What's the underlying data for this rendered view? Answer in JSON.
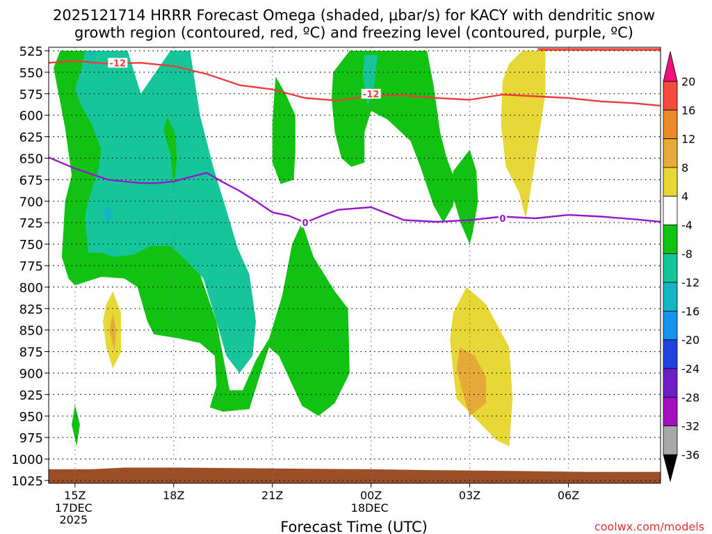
{
  "chart_data": {
    "type": "heatmap",
    "title": {
      "line1": "2025121714 HRRR Forecast Omega (shaded, μbar/s) for KACY with dendritic snow",
      "line2": "growth region (contoured, red, ºC) and freezing level (contoured, purple, ºC)"
    },
    "xlabel": "Forecast Time (UTC)",
    "ylabel": "",
    "credit": "coolwx.com/models",
    "x_range_hours": [
      14.2,
      32.8
    ],
    "y_range_hpa": [
      525,
      1025
    ],
    "y_ticks": [
      "525",
      "550",
      "575",
      "600",
      "625",
      "650",
      "675",
      "700",
      "725",
      "750",
      "775",
      "800",
      "825",
      "850",
      "875",
      "900",
      "925",
      "950",
      "975",
      "1000",
      "1025"
    ],
    "x_ticks": [
      {
        "hour": 15,
        "label": "15Z",
        "sub": [
          "17DEC",
          "2025"
        ]
      },
      {
        "hour": 18,
        "label": "18Z",
        "sub": []
      },
      {
        "hour": 21,
        "label": "21Z",
        "sub": []
      },
      {
        "hour": 24,
        "label": "00Z",
        "sub": [
          "18DEC"
        ]
      },
      {
        "hour": 27,
        "label": "03Z",
        "sub": []
      },
      {
        "hour": 30,
        "label": "06Z",
        "sub": []
      }
    ],
    "grid": true,
    "colorbar": {
      "labels": [
        "20",
        "16",
        "12",
        "8",
        "4",
        "-4",
        "-8",
        "-12",
        "-16",
        "-20",
        "-24",
        "-28",
        "-32",
        "-36"
      ],
      "colors": {
        "gt20": "#f00f7d",
        "16_20": "#f54a3e",
        "12_16": "#ec8a27",
        "8_12": "#e5aa37",
        "4_8": "#e7d838",
        "m4_4": "#ffffff",
        "m8_m4": "#12c212",
        "m12_m8": "#17c59a",
        "m16_m12": "#14b5c4",
        "m20_m16": "#1591ee",
        "m24_m20": "#1d44dc",
        "m28_m24": "#6c1fc7",
        "m32_m28": "#a30fbf",
        "m36_m32": "#a8a8a8",
        "lt_m36": "#000000"
      }
    },
    "omega_regions": [
      {
        "band": "m8_m4",
        "points": [
          [
            14.55,
            525
          ],
          [
            15.3,
            525
          ],
          [
            15.4,
            555
          ],
          [
            16.0,
            580
          ],
          [
            16.5,
            620
          ],
          [
            17.1,
            660
          ],
          [
            17.5,
            695
          ],
          [
            17.6,
            730
          ],
          [
            17.9,
            752
          ],
          [
            18.3,
            765
          ],
          [
            18.8,
            785
          ],
          [
            19.3,
            840
          ],
          [
            19.7,
            920
          ],
          [
            20.1,
            920
          ],
          [
            20.5,
            885
          ],
          [
            20.9,
            860
          ],
          [
            21.3,
            810
          ],
          [
            21.6,
            750
          ],
          [
            21.9,
            725
          ],
          [
            22.25,
            765
          ],
          [
            22.9,
            805
          ],
          [
            23.3,
            825
          ],
          [
            23.35,
            900
          ],
          [
            22.9,
            935
          ],
          [
            22.4,
            950
          ],
          [
            21.9,
            938
          ],
          [
            21.5,
            905
          ],
          [
            21.2,
            880
          ],
          [
            20.9,
            870
          ],
          [
            20.6,
            905
          ],
          [
            20.3,
            942
          ],
          [
            19.5,
            945
          ],
          [
            19.1,
            940
          ],
          [
            19.3,
            915
          ],
          [
            19.25,
            880
          ],
          [
            18.8,
            865
          ],
          [
            18.2,
            860
          ],
          [
            17.4,
            855
          ],
          [
            17.2,
            840
          ],
          [
            16.9,
            800
          ],
          [
            16.5,
            790
          ],
          [
            15.8,
            788
          ],
          [
            15.0,
            798
          ],
          [
            14.8,
            790
          ],
          [
            14.6,
            765
          ],
          [
            14.7,
            700
          ],
          [
            14.9,
            670
          ],
          [
            14.7,
            615
          ],
          [
            14.5,
            575
          ],
          [
            14.35,
            545
          ]
        ]
      },
      {
        "band": "m12_m8",
        "points": [
          [
            15.3,
            525
          ],
          [
            16.6,
            525
          ],
          [
            17.0,
            575
          ],
          [
            17.9,
            525
          ],
          [
            18.5,
            525
          ],
          [
            18.8,
            600
          ],
          [
            19.2,
            660
          ],
          [
            19.6,
            710
          ],
          [
            19.95,
            755
          ],
          [
            20.3,
            785
          ],
          [
            20.5,
            840
          ],
          [
            20.4,
            880
          ],
          [
            20.0,
            900
          ],
          [
            19.6,
            880
          ],
          [
            19.3,
            840
          ],
          [
            18.9,
            790
          ],
          [
            18.4,
            770
          ],
          [
            17.9,
            752
          ],
          [
            17.3,
            752
          ],
          [
            16.8,
            762
          ],
          [
            16.2,
            765
          ],
          [
            15.8,
            760
          ],
          [
            15.4,
            760
          ],
          [
            15.3,
            720
          ],
          [
            15.4,
            700
          ],
          [
            15.7,
            665
          ],
          [
            15.8,
            640
          ],
          [
            15.5,
            610
          ],
          [
            15.2,
            590
          ],
          [
            15.0,
            570
          ],
          [
            15.2,
            545
          ]
        ]
      },
      {
        "band": "m8_m4",
        "points": [
          [
            17.8,
            602
          ],
          [
            18.05,
            622
          ],
          [
            18.1,
            650
          ],
          [
            18.0,
            685
          ],
          [
            17.9,
            645
          ],
          [
            17.7,
            618
          ]
        ]
      },
      {
        "band": "m16_m12",
        "points": [
          [
            15.95,
            705
          ],
          [
            16.2,
            715
          ],
          [
            16.0,
            725
          ],
          [
            15.85,
            715
          ]
        ]
      },
      {
        "band": "m16_m12",
        "points": [
          [
            15.5,
            525
          ],
          [
            15.6,
            528
          ],
          [
            15.5,
            532
          ],
          [
            15.4,
            528
          ]
        ]
      },
      {
        "band": "m8_m4",
        "points": [
          [
            21.1,
            555
          ],
          [
            21.4,
            575
          ],
          [
            21.7,
            600
          ],
          [
            21.7,
            640
          ],
          [
            21.65,
            675
          ],
          [
            21.25,
            680
          ],
          [
            21.0,
            655
          ],
          [
            21.0,
            610
          ],
          [
            21.05,
            580
          ]
        ]
      },
      {
        "band": "m8_m4",
        "points": [
          [
            23.35,
            525
          ],
          [
            25.7,
            525
          ],
          [
            25.9,
            565
          ],
          [
            26.1,
            620
          ],
          [
            26.3,
            650
          ],
          [
            26.6,
            680
          ],
          [
            26.5,
            705
          ],
          [
            26.2,
            725
          ],
          [
            25.9,
            705
          ],
          [
            25.5,
            660
          ],
          [
            25.2,
            630
          ],
          [
            24.5,
            605
          ],
          [
            24.0,
            595
          ],
          [
            23.8,
            620
          ],
          [
            23.8,
            655
          ],
          [
            23.4,
            660
          ],
          [
            23.1,
            650
          ],
          [
            22.9,
            620
          ],
          [
            22.8,
            580
          ],
          [
            22.85,
            550
          ]
        ]
      },
      {
        "band": "m12_m8",
        "points": [
          [
            23.8,
            530
          ],
          [
            24.2,
            530
          ],
          [
            24.1,
            565
          ],
          [
            23.9,
            590
          ],
          [
            23.75,
            555
          ]
        ]
      },
      {
        "band": "m8_m4",
        "points": [
          [
            27.0,
            640
          ],
          [
            27.2,
            665
          ],
          [
            27.25,
            700
          ],
          [
            27.1,
            735
          ],
          [
            27.0,
            750
          ],
          [
            26.75,
            728
          ],
          [
            26.45,
            690
          ],
          [
            26.5,
            665
          ],
          [
            26.8,
            650
          ]
        ]
      },
      {
        "band": "4_8",
        "points": [
          [
            28.6,
            525
          ],
          [
            29.3,
            525
          ],
          [
            29.3,
            575
          ],
          [
            29.0,
            650
          ],
          [
            28.8,
            700
          ],
          [
            28.7,
            720
          ],
          [
            28.5,
            690
          ],
          [
            28.1,
            660
          ],
          [
            27.95,
            610
          ],
          [
            28.0,
            560
          ],
          [
            28.2,
            540
          ]
        ]
      },
      {
        "band": "4_8",
        "points": [
          [
            26.9,
            800
          ],
          [
            27.5,
            820
          ],
          [
            28.2,
            870
          ],
          [
            28.3,
            930
          ],
          [
            28.2,
            985
          ],
          [
            27.8,
            978
          ],
          [
            27.1,
            950
          ],
          [
            26.6,
            930
          ],
          [
            26.5,
            900
          ],
          [
            26.4,
            860
          ],
          [
            26.5,
            830
          ]
        ]
      },
      {
        "band": "8_12",
        "points": [
          [
            26.7,
            870
          ],
          [
            27.15,
            880
          ],
          [
            27.5,
            905
          ],
          [
            27.5,
            935
          ],
          [
            27.0,
            950
          ],
          [
            26.8,
            925
          ],
          [
            26.6,
            895
          ]
        ]
      },
      {
        "band": "4_8",
        "points": [
          [
            16.15,
            805
          ],
          [
            16.4,
            830
          ],
          [
            16.4,
            875
          ],
          [
            16.15,
            895
          ],
          [
            15.95,
            870
          ],
          [
            15.85,
            840
          ],
          [
            15.95,
            820
          ]
        ]
      },
      {
        "band": "8_12",
        "points": [
          [
            16.15,
            830
          ],
          [
            16.25,
            850
          ],
          [
            16.2,
            875
          ],
          [
            16.05,
            850
          ]
        ]
      },
      {
        "band": "m8_m4",
        "points": [
          [
            15.0,
            937
          ],
          [
            15.15,
            960
          ],
          [
            15.05,
            985
          ],
          [
            14.9,
            960
          ]
        ]
      },
      {
        "band": "16_20",
        "points": [
          [
            29.05,
            522
          ],
          [
            32.8,
            522
          ],
          [
            32.8,
            525
          ],
          [
            29.1,
            525
          ]
        ]
      }
    ],
    "ground": {
      "color": "#9c4f26",
      "top_hpa": [
        [
          14.2,
          1012
        ],
        [
          15.5,
          1012
        ],
        [
          16.5,
          1010
        ],
        [
          18.0,
          1010
        ],
        [
          21.0,
          1011
        ],
        [
          24.0,
          1012
        ],
        [
          26.0,
          1013
        ],
        [
          28.5,
          1014
        ],
        [
          30.5,
          1015
        ],
        [
          32.8,
          1015
        ]
      ]
    },
    "dgz_line": {
      "color": "#ee3c3c",
      "label": "-12",
      "label_at": [
        16.3,
        539
      ],
      "label_at2": [
        24.0,
        575
      ],
      "points": [
        [
          14.2,
          539
        ],
        [
          15.0,
          537
        ],
        [
          16.0,
          540
        ],
        [
          17.0,
          539
        ],
        [
          18.0,
          543
        ],
        [
          19.0,
          552
        ],
        [
          20.0,
          565
        ],
        [
          21.0,
          570
        ],
        [
          22.0,
          580
        ],
        [
          23.0,
          583
        ],
        [
          24.0,
          577
        ],
        [
          25.0,
          577
        ],
        [
          26.0,
          580
        ],
        [
          27.0,
          582
        ],
        [
          28.0,
          576
        ],
        [
          29.0,
          578
        ],
        [
          30.0,
          580
        ],
        [
          31.0,
          584
        ],
        [
          32.0,
          586
        ],
        [
          32.8,
          589
        ]
      ]
    },
    "freezing_line": {
      "color": "#9218c8",
      "label": "0",
      "label_at": [
        22.0,
        725
      ],
      "label_at2": [
        28.0,
        720
      ],
      "points": [
        [
          14.2,
          649
        ],
        [
          15.0,
          662
        ],
        [
          16.0,
          675
        ],
        [
          17.0,
          679
        ],
        [
          17.5,
          679
        ],
        [
          18.0,
          677
        ],
        [
          18.5,
          672
        ],
        [
          19.0,
          667
        ],
        [
          19.5,
          678
        ],
        [
          20.0,
          688
        ],
        [
          20.5,
          700
        ],
        [
          21.0,
          713
        ],
        [
          21.5,
          717
        ],
        [
          22.0,
          725
        ],
        [
          22.5,
          717
        ],
        [
          23.0,
          710
        ],
        [
          24.0,
          707
        ],
        [
          25.0,
          722
        ],
        [
          26.0,
          724
        ],
        [
          27.0,
          722
        ],
        [
          28.0,
          718
        ],
        [
          29.0,
          720
        ],
        [
          30.0,
          716
        ],
        [
          31.0,
          718
        ],
        [
          32.0,
          721
        ],
        [
          32.8,
          724
        ]
      ]
    }
  }
}
